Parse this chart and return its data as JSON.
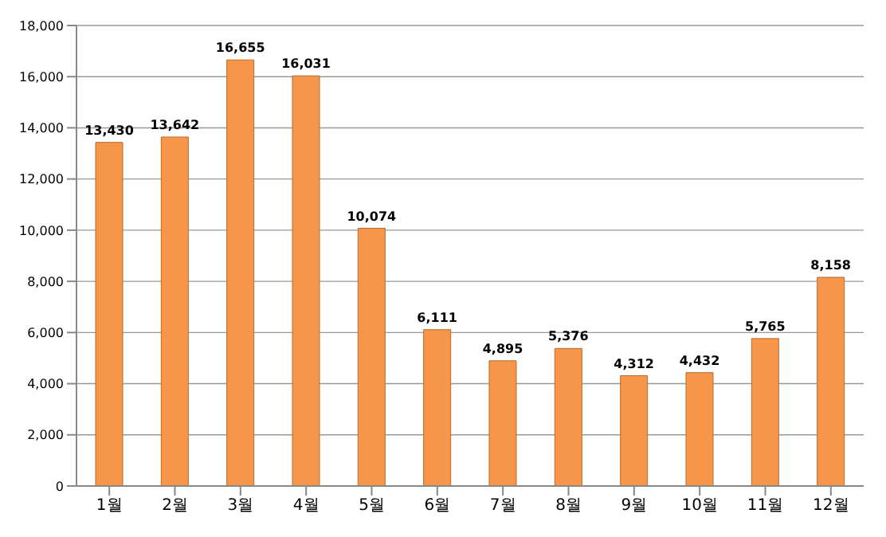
{
  "chart_data": {
    "type": "bar",
    "categories": [
      "1월",
      "2월",
      "3월",
      "4월",
      "5월",
      "6월",
      "7월",
      "8월",
      "9월",
      "10월",
      "11월",
      "12월"
    ],
    "values": [
      13430,
      13642,
      16655,
      16031,
      10074,
      6111,
      4895,
      5376,
      4312,
      4432,
      5765,
      8158
    ],
    "color": "#f7964a",
    "ylim": [
      0,
      18000
    ],
    "yticks": [
      {
        "value": 0,
        "label": "0"
      },
      {
        "value": 2000,
        "label": "2,000"
      },
      {
        "value": 4000,
        "label": "4,000"
      },
      {
        "value": 6000,
        "label": "6,000"
      },
      {
        "value": 8000,
        "label": "8,000"
      },
      {
        "value": 10000,
        "label": "10,000"
      },
      {
        "value": 12000,
        "label": "12,000"
      },
      {
        "value": 14000,
        "label": "14,000"
      },
      {
        "value": 16000,
        "label": "16,000"
      },
      {
        "value": 18000,
        "label": "18,000"
      }
    ],
    "grid": "y",
    "value_labels": [
      "13,430",
      "13,642",
      "16,655",
      "16,031",
      "10,074",
      "6,111",
      "4,895",
      "5,376",
      "4,312",
      "4,432",
      "5,765",
      "8,158"
    ]
  }
}
